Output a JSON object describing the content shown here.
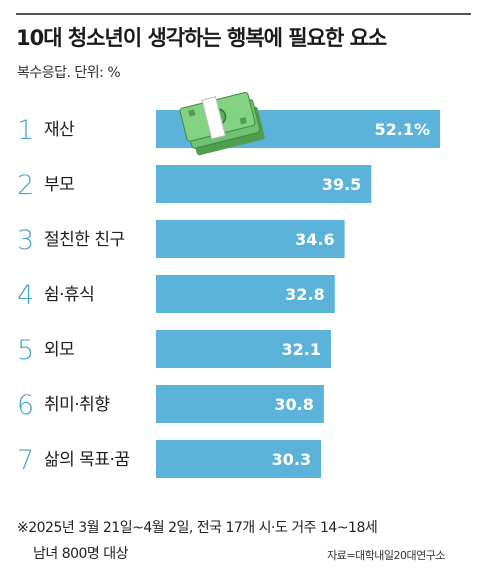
{
  "header": {
    "title": "10대 청소년이 생각하는 행복에 필요한 요소",
    "subtitle": "복수응답. 단위: %"
  },
  "footer": {
    "note_line1": "※2025년 3월 21일~4월 2일, 전국 17개 시·도 거주 14~18세",
    "note_line2": "남녀 800명 대상",
    "source": "자료=대학내일20대연구소"
  },
  "colors": {
    "bar": "#5bb3d9",
    "rank": "#4aa3cc",
    "money_green": "#6fc26f"
  },
  "chart_data": {
    "type": "bar",
    "orientation": "horizontal",
    "categories": [
      "재산",
      "부모",
      "절친한 친구",
      "쉼·휴식",
      "외모",
      "취미·취향",
      "삶의 목표·꿈"
    ],
    "ranks": [
      "1",
      "2",
      "3",
      "4",
      "5",
      "6",
      "7"
    ],
    "values": [
      52.1,
      39.5,
      34.6,
      32.8,
      32.1,
      30.8,
      30.3
    ],
    "value_labels": [
      "52.1%",
      "39.5",
      "34.6",
      "32.8",
      "32.1",
      "30.8",
      "30.3"
    ],
    "grid": false,
    "icon": "money-stack-icon"
  }
}
